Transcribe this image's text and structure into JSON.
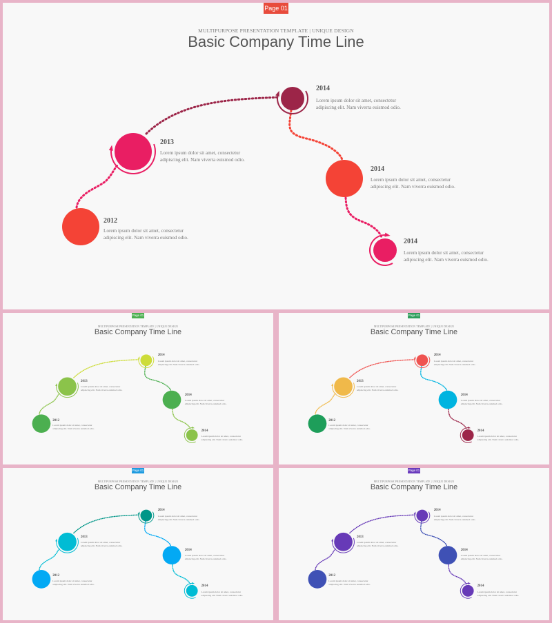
{
  "slides": [
    {
      "tag": "Page 01",
      "tag_color": "#e84b3c",
      "subtitle": "MULTIPURPOSE PRESENTATION TEMPLATE | UNIQUE DESIGN",
      "title": "Basic Company Time Line",
      "events": [
        {
          "year": "2012",
          "text": "Lorem ipsum dolor sit amet, consectetur adipiscing elit. Nam viverra euismod odio.",
          "color": "#f44336"
        },
        {
          "year": "2013",
          "text": "Lorem ipsum dolor sit amet, consectetur adipiscing elit. Nam viverra euismod odio.",
          "color": "#e91e63"
        },
        {
          "year": "2014",
          "text": "Lorem ipsum dolor sit amet, consectetur adipiscing elit. Nam viverra euismod odio.",
          "color": "#9c2548"
        },
        {
          "year": "2014",
          "text": "Lorem ipsum dolor sit amet, consectetur adipiscing elit. Nam viverra euismod odio.",
          "color": "#f44336"
        },
        {
          "year": "2014",
          "text": "Lorem ipsum dolor sit amet, consectetur adipiscing elit. Nam viverra euismod odio.",
          "color": "#e91e63"
        }
      ]
    },
    {
      "tag": "Page 01",
      "tag_color": "#4caf50",
      "subtitle": "MULTIPURPOSE PRESENTATION TEMPLATE | UNIQUE DESIGN",
      "title": "Basic Company Time Line",
      "events": [
        {
          "year": "2012",
          "text": "Lorem ipsum dolor sit amet, consectetur adipiscing elit. Nam viverra euismod odio.",
          "color": "#4caf50"
        },
        {
          "year": "2013",
          "text": "Lorem ipsum dolor sit amet, consectetur adipiscing elit. Nam viverra euismod odio.",
          "color": "#8bc34a"
        },
        {
          "year": "2014",
          "text": "Lorem ipsum dolor sit amet, consectetur adipiscing elit. Nam viverra euismod odio.",
          "color": "#cddc39"
        },
        {
          "year": "2014",
          "text": "Lorem ipsum dolor sit amet, consectetur adipiscing elit. Nam viverra euismod odio.",
          "color": "#4caf50"
        },
        {
          "year": "2014",
          "text": "Lorem ipsum dolor sit amet, consectetur adipiscing elit. Nam viverra euismod odio.",
          "color": "#8bc34a"
        }
      ]
    },
    {
      "tag": "Page 01",
      "tag_color": "#2e9e5b",
      "subtitle": "MULTIPURPOSE PRESENTATION TEMPLATE | UNIQUE DESIGN",
      "title": "Basic Company Time Line",
      "events": [
        {
          "year": "2012",
          "text": "Lorem ipsum dolor sit amet, consectetur adipiscing elit. Nam viverra euismod odio.",
          "color": "#1e9e5a"
        },
        {
          "year": "2013",
          "text": "Lorem ipsum dolor sit amet, consectetur adipiscing elit. Nam viverra euismod odio.",
          "color": "#f0b94a"
        },
        {
          "year": "2014",
          "text": "Lorem ipsum dolor sit amet, consectetur adipiscing elit. Nam viverra euismod odio.",
          "color": "#ef5350"
        },
        {
          "year": "2014",
          "text": "Lorem ipsum dolor sit amet, consectetur adipiscing elit. Nam viverra euismod odio.",
          "color": "#00b4e0"
        },
        {
          "year": "2014",
          "text": "Lorem ipsum dolor sit amet, consectetur adipiscing elit. Nam viverra euismod odio.",
          "color": "#9c2548"
        }
      ]
    },
    {
      "tag": "Page 01",
      "tag_color": "#1e9be0",
      "subtitle": "MULTIPURPOSE PRESENTATION TEMPLATE | UNIQUE DESIGN",
      "title": "Basic Company Time Line",
      "events": [
        {
          "year": "2012",
          "text": "Lorem ipsum dolor sit amet, consectetur adipiscing elit. Nam viverra euismod odio.",
          "color": "#03a9f4"
        },
        {
          "year": "2013",
          "text": "Lorem ipsum dolor sit amet, consectetur adipiscing elit. Nam viverra euismod odio.",
          "color": "#00bcd4"
        },
        {
          "year": "2014",
          "text": "Lorem ipsum dolor sit amet, consectetur adipiscing elit. Nam viverra euismod odio.",
          "color": "#009688"
        },
        {
          "year": "2014",
          "text": "Lorem ipsum dolor sit amet, consectetur adipiscing elit. Nam viverra euismod odio.",
          "color": "#03a9f4"
        },
        {
          "year": "2014",
          "text": "Lorem ipsum dolor sit amet, consectetur adipiscing elit. Nam viverra euismod odio.",
          "color": "#00bcd4"
        }
      ]
    },
    {
      "tag": "Page 01",
      "tag_color": "#6a3bbd",
      "subtitle": "MULTIPURPOSE PRESENTATION TEMPLATE | UNIQUE DESIGN",
      "title": "Basic Company Time Line",
      "events": [
        {
          "year": "2012",
          "text": "Lorem ipsum dolor sit amet, consectetur adipiscing elit. Nam viverra euismod odio.",
          "color": "#3f51b5"
        },
        {
          "year": "2013",
          "text": "Lorem ipsum dolor sit amet, consectetur adipiscing elit. Nam viverra euismod odio.",
          "color": "#673ab7"
        },
        {
          "year": "2014",
          "text": "Lorem ipsum dolor sit amet, consectetur adipiscing elit. Nam viverra euismod odio.",
          "color": "#673ab7"
        },
        {
          "year": "2014",
          "text": "Lorem ipsum dolor sit amet, consectetur adipiscing elit. Nam viverra euismod odio.",
          "color": "#3f51b5"
        },
        {
          "year": "2014",
          "text": "Lorem ipsum dolor sit amet, consectetur adipiscing elit. Nam viverra euismod odio.",
          "color": "#673ab7"
        }
      ]
    }
  ]
}
